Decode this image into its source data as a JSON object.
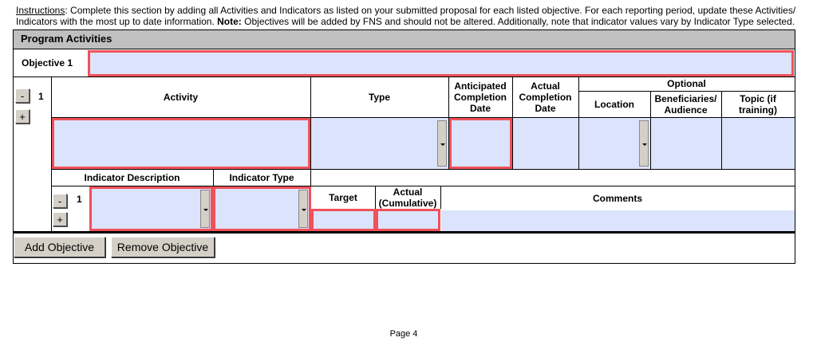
{
  "instructions": {
    "label": "Instructions",
    "text1": ": Complete this section by adding all Activities and Indicators as listed on your submitted proposal for each listed objective. For each reporting period, update these Activities/ Indicators with the most up to date information. ",
    "note_label": "Note:",
    "text2": " Objectives will be added by FNS and should not be altered. Additionally, note that indicator values vary by Indicator Type selected."
  },
  "section_title": "Program Activities",
  "objective": {
    "label": "Objective 1",
    "value": ""
  },
  "activity": {
    "number": "1",
    "minus": "-",
    "plus": "+",
    "headers": {
      "activity": "Activity",
      "type": "Type",
      "anticipated": "Anticipated Completion Date",
      "actual": "Actual Completion Date",
      "optional": "Optional",
      "location": "Location",
      "beneficiaries": "Beneficiaries/ Audience",
      "topic": "Topic (if training)"
    }
  },
  "indicator": {
    "number": "1",
    "minus": "-",
    "plus": "+",
    "headers": {
      "description": "Indicator Description",
      "type": "Indicator Type",
      "target": "Target",
      "actual": "Actual (Cumulative)",
      "comments": "Comments"
    }
  },
  "buttons": {
    "add_objective": "Add Objective",
    "remove_objective": "Remove Objective"
  },
  "footer": {
    "page": "Page 4"
  },
  "colors": {
    "field": "#dce3fd",
    "required_border": "#f0515a",
    "header": "#c0c0c0"
  }
}
